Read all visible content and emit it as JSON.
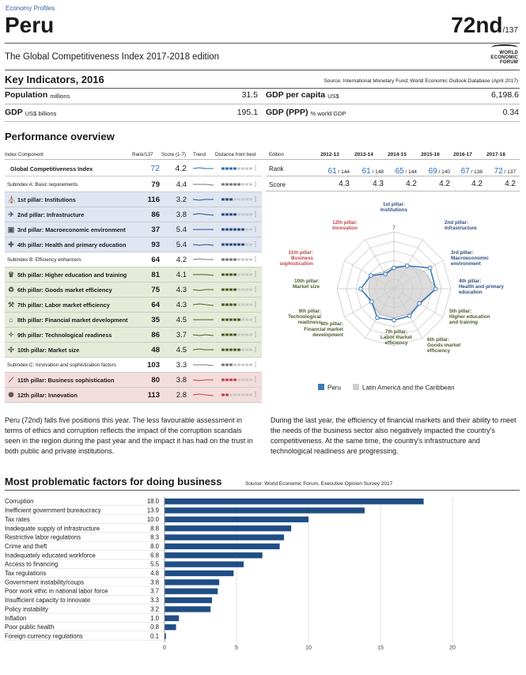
{
  "header": {
    "kicker": "Economy Profiles",
    "country": "Peru",
    "rank": "72nd",
    "rank_of": "/137",
    "subtitle": "The Global Competitiveness Index 2017-2018 edition",
    "logo_text": [
      "WORLD",
      "ECONOMIC",
      "FORUM"
    ]
  },
  "key_indicators": {
    "title": "Key Indicators, 2016",
    "source": "Source: International Monetary Fund; World Economic Outlook Database (April 2017)",
    "rows": [
      {
        "label": "Population",
        "unit": "millions",
        "value": "31.5",
        "label2": "GDP per capita",
        "unit2": "US$",
        "value2": "6,198.6"
      },
      {
        "label": "GDP",
        "unit": "US$ billions",
        "value": "195.1",
        "label2": "GDP (PPP)",
        "unit2": "% world GDP",
        "value2": "0.34"
      }
    ]
  },
  "performance": {
    "title": "Performance overview",
    "headers": {
      "component": "Index Component",
      "rank": "Rank/137",
      "score": "Score (1-7)",
      "trend": "Trend",
      "dist": "Distance from best",
      "edition": "Edition"
    },
    "rows": [
      {
        "label": "Global Competitiveness Index",
        "rank": "72",
        "score": "4.2",
        "kind": "gci",
        "bg": "#ffffff",
        "color": "#2e6fb5",
        "icon": ""
      },
      {
        "label": "Subindex A: Basic requirements",
        "rank": "79",
        "score": "4.4",
        "kind": "sub",
        "bg": "#ffffff",
        "color": "#777777",
        "icon": ""
      },
      {
        "label": "1st pillar: Institutions",
        "rank": "116",
        "score": "3.2",
        "kind": "pillar",
        "bg": "#dfe6f2",
        "color": "#2f4f7f",
        "icon": "⛪"
      },
      {
        "label": "2nd pillar: Infrastructure",
        "rank": "86",
        "score": "3.8",
        "kind": "pillar",
        "bg": "#dfe6f2",
        "color": "#2f4f7f",
        "icon": "✈"
      },
      {
        "label": "3rd pillar: Macroeconomic environment",
        "rank": "37",
        "score": "5.4",
        "kind": "pillar",
        "bg": "#dfe6f2",
        "color": "#2f4f7f",
        "icon": "▣"
      },
      {
        "label": "4th pillar: Health and primary education",
        "rank": "93",
        "score": "5.4",
        "kind": "pillar",
        "bg": "#dfe6f2",
        "color": "#2f4f7f",
        "icon": "✚"
      },
      {
        "label": "Subindex B: Efficiency enhancers",
        "rank": "64",
        "score": "4.2",
        "kind": "sub",
        "bg": "#ffffff",
        "color": "#777777",
        "icon": ""
      },
      {
        "label": "5th pillar: Higher education and training",
        "rank": "81",
        "score": "4.1",
        "kind": "pillar",
        "bg": "#e4ecd8",
        "color": "#4b5e2a",
        "icon": "♛"
      },
      {
        "label": "6th pillar: Goods market efficiency",
        "rank": "75",
        "score": "4.3",
        "kind": "pillar",
        "bg": "#e4ecd8",
        "color": "#4b5e2a",
        "icon": "♻"
      },
      {
        "label": "7th pillar: Labor market efficiency",
        "rank": "64",
        "score": "4.3",
        "kind": "pillar",
        "bg": "#e4ecd8",
        "color": "#4b5e2a",
        "icon": "⚒"
      },
      {
        "label": "8th pillar: Financial market development",
        "rank": "35",
        "score": "4.5",
        "kind": "pillar",
        "bg": "#e4ecd8",
        "color": "#4b5e2a",
        "icon": "⌂"
      },
      {
        "label": "9th pillar: Technological readiness",
        "rank": "86",
        "score": "3.7",
        "kind": "pillar",
        "bg": "#e4ecd8",
        "color": "#4b5e2a",
        "icon": "✧"
      },
      {
        "label": "10th pillar: Market size",
        "rank": "48",
        "score": "4.5",
        "kind": "pillar",
        "bg": "#e4ecd8",
        "color": "#4b5e2a",
        "icon": "✣"
      },
      {
        "label": "Subindex C: Innovation and sophistication factors",
        "rank": "103",
        "score": "3.3",
        "kind": "sub",
        "bg": "#ffffff",
        "color": "#777777",
        "icon": ""
      },
      {
        "label": "11th pillar: Business sophistication",
        "rank": "80",
        "score": "3.8",
        "kind": "pillar",
        "bg": "#f4dcdc",
        "color": "#c0444a",
        "icon": "⟋"
      },
      {
        "label": "12th pillar: Innovation",
        "rank": "113",
        "score": "2.8",
        "kind": "pillar",
        "bg": "#f4dcdc",
        "color": "#c0444a",
        "icon": "✺"
      }
    ]
  },
  "edition_table": {
    "years": [
      "2012-13",
      "2013-14",
      "2014-15",
      "2015-16",
      "2016-17",
      "2017-18"
    ],
    "rank_label": "Rank",
    "score_label": "Score",
    "ranks": [
      {
        "r": "61",
        "of": "/ 144"
      },
      {
        "r": "61",
        "of": "/ 148"
      },
      {
        "r": "65",
        "of": "/ 144"
      },
      {
        "r": "69",
        "of": "/ 140"
      },
      {
        "r": "67",
        "of": "/ 138"
      },
      {
        "r": "72",
        "of": "/ 137"
      }
    ],
    "scores": [
      "4.3",
      "4.3",
      "4.2",
      "4.2",
      "4.2",
      "4.2"
    ]
  },
  "radar": {
    "labels": [
      {
        "text": [
          "1st pillar:",
          "Institutions"
        ],
        "color": "#2f4f7f"
      },
      {
        "text": [
          "2nd pillar:",
          "Infrastructure"
        ],
        "color": "#2f4f7f"
      },
      {
        "text": [
          "3rd pillar:",
          "Macroeconomic",
          "environment"
        ],
        "color": "#2f4f7f"
      },
      {
        "text": [
          "4th pillar:",
          "Health and primary",
          "education"
        ],
        "color": "#2f4f7f"
      },
      {
        "text": [
          "5th pillar:",
          "Higher education",
          "and training"
        ],
        "color": "#4b5e2a"
      },
      {
        "text": [
          "6th pillar:",
          "Goods market",
          "efficiency"
        ],
        "color": "#4b5e2a"
      },
      {
        "text": [
          "7th pillar:",
          "Labor market",
          "efficiency"
        ],
        "color": "#4b5e2a"
      },
      {
        "text": [
          "8th pillar:",
          "Financial market",
          "development"
        ],
        "color": "#4b5e2a"
      },
      {
        "text": [
          "9th pillar:",
          "Technological",
          "readiness"
        ],
        "color": "#4b5e2a"
      },
      {
        "text": [
          "10th pillar:",
          "Market size"
        ],
        "color": "#4b5e2a"
      },
      {
        "text": [
          "11th pillar:",
          "Business",
          "sophistication"
        ],
        "color": "#c0444a"
      },
      {
        "text": [
          "12th pillar:",
          "Innovation"
        ],
        "color": "#c0444a"
      }
    ],
    "max_label": "7",
    "peru": [
      3.2,
      3.8,
      5.4,
      5.4,
      4.1,
      4.3,
      4.3,
      4.5,
      3.7,
      4.5,
      3.8,
      2.8
    ],
    "region": [
      3.4,
      3.8,
      4.7,
      5.5,
      4.2,
      4.1,
      4.1,
      4.1,
      3.8,
      3.7,
      3.9,
      3.1
    ],
    "legend": [
      {
        "name": "Peru",
        "color": "#3d7ab8"
      },
      {
        "name": "Latin America and the Caribbean",
        "color": "#cfcfcf"
      }
    ]
  },
  "text": {
    "left": "Peru (72nd) falls five positions this year. The less favourable assessment in terms of ethics and corruption reflects the impact of the corruption scandals seen in the region during the past year and the impact it has had on the trust in both public and private institutions.",
    "right": "During the last year, the efficiency of financial markets and their ability to meet the needs of the business sector also negatively impacted the country's competitiveness. At the same time, the country's infrastructure and technological readiness are progressing."
  },
  "factors": {
    "title": "Most problematic factors for doing business",
    "source": "Source: World Economic Forum, Executive Opinion Survey 2017",
    "ticks": [
      "0",
      "5",
      "10",
      "15",
      "20"
    ],
    "bar_color": "#1f4e86"
  },
  "chart_data": {
    "type": "bar",
    "orientation": "horizontal",
    "title": "Most problematic factors for doing business",
    "categories": [
      "Corruption",
      "Inefficient government bureaucracy",
      "Tax rates",
      "Inadequate supply of infrastructure",
      "Restrictive labor regulations",
      "Crime and theft",
      "Inadequately educated workforce",
      "Access to financing",
      "Tax regulations",
      "Government instability/coups",
      "Poor work ethic in national labor force",
      "Insufficient capacity to innovate",
      "Policy instability",
      "Inflation",
      "Poor public health",
      "Foreign currency regulations"
    ],
    "values": [
      18.0,
      13.9,
      10.0,
      8.8,
      8.3,
      8.0,
      6.8,
      5.5,
      4.8,
      3.8,
      3.7,
      3.3,
      3.2,
      1.0,
      0.8,
      0.1
    ],
    "value_labels": [
      "18.0",
      "13.9",
      "10.0",
      "8.8",
      "8.3",
      "8.0",
      "6.8",
      "5.5",
      "4.8",
      "3.8",
      "3.7",
      "3.3",
      "3.2",
      "1.0",
      "0.8",
      "0.1"
    ],
    "xlim": [
      0,
      20
    ],
    "grid": true
  }
}
